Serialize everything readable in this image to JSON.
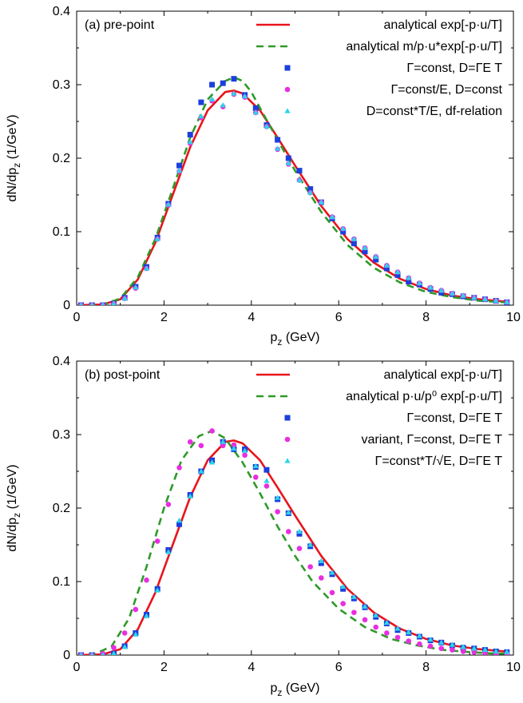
{
  "chart_data": [
    {
      "type": "line",
      "panel_label": "(a) pre-point",
      "xlabel": "p",
      "xlabel_sub": "z",
      "xlabel_unit": " (GeV)",
      "ylabel": "dN/dp",
      "ylabel_sub": "z",
      "ylabel_unit": " (1/GeV)",
      "xlim": [
        0,
        10
      ],
      "ylim": [
        0,
        0.4
      ],
      "xticks": [
        "0",
        "2",
        "4",
        "6",
        "8",
        "10"
      ],
      "yticks": [
        "0",
        "0.1",
        "0.2",
        "0.3",
        "0.4"
      ],
      "legend_position": "top-right",
      "series": [
        {
          "name": "analytical exp[-p·u/T]",
          "kind": "line",
          "color": "#e8141c",
          "dash": "",
          "x": [
            0,
            0.6,
            1.0,
            1.4,
            1.8,
            2.2,
            2.6,
            3.0,
            3.4,
            3.6,
            3.8,
            4.2,
            4.6,
            5.0,
            5.6,
            6.2,
            6.8,
            7.4,
            8.0,
            8.6,
            9.2,
            9.8
          ],
          "y": [
            0,
            0.001,
            0.008,
            0.035,
            0.085,
            0.15,
            0.215,
            0.265,
            0.29,
            0.292,
            0.288,
            0.265,
            0.228,
            0.19,
            0.135,
            0.09,
            0.058,
            0.036,
            0.022,
            0.013,
            0.008,
            0.005
          ]
        },
        {
          "name": "analytical m/p·u*exp[-p·u/T]",
          "kind": "line",
          "color": "#2e9a28",
          "dash": "9,6",
          "x": [
            0,
            0.6,
            1.0,
            1.4,
            1.8,
            2.2,
            2.6,
            3.0,
            3.4,
            3.6,
            3.8,
            4.0,
            4.2,
            4.6,
            5.0,
            5.6,
            6.2,
            6.8,
            7.4,
            8.0,
            8.6,
            9.2,
            9.8
          ],
          "y": [
            0,
            0.001,
            0.009,
            0.038,
            0.09,
            0.158,
            0.228,
            0.28,
            0.305,
            0.31,
            0.305,
            0.29,
            0.268,
            0.225,
            0.183,
            0.127,
            0.082,
            0.051,
            0.031,
            0.018,
            0.011,
            0.006,
            0.004
          ]
        },
        {
          "name": "Γ=const, D=ΓE T",
          "kind": "square",
          "color": "#1c3fdc",
          "x": [
            0.1,
            0.35,
            0.6,
            0.85,
            1.1,
            1.35,
            1.6,
            1.85,
            2.1,
            2.35,
            2.6,
            2.85,
            3.1,
            3.35,
            3.6,
            3.85,
            4.1,
            4.35,
            4.6,
            4.85,
            5.1,
            5.35,
            5.6,
            5.85,
            6.1,
            6.35,
            6.6,
            6.85,
            7.1,
            7.35,
            7.6,
            7.85,
            8.1,
            8.35,
            8.6,
            8.85,
            9.1,
            9.35,
            9.6,
            9.85
          ],
          "y": [
            0,
            0,
            0,
            0.002,
            0.01,
            0.025,
            0.052,
            0.092,
            0.138,
            0.19,
            0.232,
            0.276,
            0.3,
            0.302,
            0.308,
            0.286,
            0.268,
            0.245,
            0.225,
            0.2,
            0.183,
            0.158,
            0.14,
            0.118,
            0.1,
            0.084,
            0.073,
            0.062,
            0.05,
            0.041,
            0.032,
            0.028,
            0.022,
            0.017,
            0.015,
            0.012,
            0.01,
            0.008,
            0.006,
            0.004
          ]
        },
        {
          "name": "Γ=const/E, D=const",
          "kind": "circle",
          "color": "#e82ee0",
          "x": [
            0.1,
            0.35,
            0.6,
            0.85,
            1.1,
            1.35,
            1.6,
            1.85,
            2.1,
            2.35,
            2.6,
            2.85,
            3.1,
            3.35,
            3.6,
            3.85,
            4.1,
            4.35,
            4.6,
            4.85,
            5.1,
            5.35,
            5.6,
            5.85,
            6.1,
            6.35,
            6.6,
            6.85,
            7.1,
            7.35,
            7.6,
            7.85,
            8.1,
            8.35,
            8.6,
            8.85,
            9.1,
            9.35,
            9.6,
            9.85
          ],
          "y": [
            0,
            0,
            0,
            0.002,
            0.009,
            0.023,
            0.05,
            0.09,
            0.136,
            0.182,
            0.22,
            0.255,
            0.278,
            0.27,
            0.287,
            0.283,
            0.262,
            0.243,
            0.212,
            0.192,
            0.17,
            0.153,
            0.14,
            0.12,
            0.104,
            0.09,
            0.078,
            0.066,
            0.054,
            0.045,
            0.037,
            0.03,
            0.024,
            0.02,
            0.016,
            0.013,
            0.01,
            0.008,
            0.006,
            0.004
          ]
        },
        {
          "name": "D=const*T/E, df-relation",
          "kind": "triangle",
          "color": "#2ed4e8",
          "x": [
            0.1,
            0.35,
            0.6,
            0.85,
            1.1,
            1.35,
            1.6,
            1.85,
            2.1,
            2.35,
            2.6,
            2.85,
            3.1,
            3.35,
            3.6,
            3.85,
            4.1,
            4.35,
            4.6,
            4.85,
            5.1,
            5.35,
            5.6,
            5.85,
            6.1,
            6.35,
            6.6,
            6.85,
            7.1,
            7.35,
            7.6,
            7.85,
            8.1,
            8.35,
            8.6,
            8.85,
            9.1,
            9.35,
            9.6,
            9.85
          ],
          "y": [
            0,
            0,
            0,
            0.002,
            0.009,
            0.024,
            0.05,
            0.09,
            0.137,
            0.183,
            0.222,
            0.257,
            0.28,
            0.272,
            0.288,
            0.284,
            0.262,
            0.243,
            0.213,
            0.193,
            0.17,
            0.153,
            0.14,
            0.12,
            0.104,
            0.09,
            0.078,
            0.066,
            0.054,
            0.045,
            0.037,
            0.03,
            0.024,
            0.02,
            0.016,
            0.013,
            0.01,
            0.008,
            0.006,
            0.004
          ]
        }
      ]
    },
    {
      "type": "line",
      "panel_label": "(b) post-point",
      "xlabel": "p",
      "xlabel_sub": "z",
      "xlabel_unit": " (GeV)",
      "ylabel": "dN/dp",
      "ylabel_sub": "z",
      "ylabel_unit": " (1/GeV)",
      "xlim": [
        0,
        10
      ],
      "ylim": [
        0,
        0.4
      ],
      "xticks": [
        "0",
        "2",
        "4",
        "6",
        "8",
        "10"
      ],
      "yticks": [
        "0",
        "0.1",
        "0.2",
        "0.3",
        "0.4"
      ],
      "legend_position": "top-right",
      "series": [
        {
          "name": "analytical exp[-p·u/T]",
          "kind": "line",
          "color": "#e8141c",
          "dash": "",
          "x": [
            0,
            0.6,
            1.0,
            1.4,
            1.8,
            2.2,
            2.6,
            3.0,
            3.4,
            3.6,
            3.8,
            4.2,
            4.6,
            5.0,
            5.6,
            6.2,
            6.8,
            7.4,
            8.0,
            8.6,
            9.2,
            9.8
          ],
          "y": [
            0,
            0.001,
            0.008,
            0.035,
            0.085,
            0.15,
            0.215,
            0.265,
            0.29,
            0.292,
            0.288,
            0.265,
            0.228,
            0.19,
            0.135,
            0.09,
            0.058,
            0.036,
            0.022,
            0.013,
            0.008,
            0.005
          ]
        },
        {
          "name": "analytical p·u/p⁰ exp[-p·u/T]",
          "kind": "line",
          "color": "#2e9a28",
          "dash": "9,6",
          "x": [
            0,
            0.4,
            0.8,
            1.2,
            1.6,
            2.0,
            2.4,
            2.8,
            3.1,
            3.4,
            3.8,
            4.2,
            4.6,
            5.0,
            5.4,
            6.0,
            6.6,
            7.2,
            7.8,
            8.4,
            9.0,
            9.6,
            9.8
          ],
          "y": [
            0,
            0.001,
            0.012,
            0.05,
            0.12,
            0.2,
            0.265,
            0.298,
            0.305,
            0.295,
            0.262,
            0.22,
            0.175,
            0.135,
            0.1,
            0.063,
            0.038,
            0.022,
            0.013,
            0.007,
            0.004,
            0.002,
            0.002
          ]
        },
        {
          "name": "Γ=const, D=ΓE T",
          "kind": "square",
          "color": "#1c3fdc",
          "x": [
            0.1,
            0.35,
            0.6,
            0.85,
            1.1,
            1.35,
            1.6,
            1.85,
            2.1,
            2.35,
            2.6,
            2.85,
            3.1,
            3.35,
            3.6,
            3.85,
            4.1,
            4.35,
            4.6,
            4.85,
            5.1,
            5.35,
            5.6,
            5.85,
            6.1,
            6.35,
            6.6,
            6.85,
            7.1,
            7.35,
            7.6,
            7.85,
            8.1,
            8.35,
            8.6,
            8.85,
            9.1,
            9.35,
            9.6,
            9.85
          ],
          "y": [
            0,
            0,
            0,
            0.002,
            0.012,
            0.03,
            0.055,
            0.09,
            0.143,
            0.178,
            0.218,
            0.25,
            0.265,
            0.29,
            0.28,
            0.28,
            0.256,
            0.252,
            0.212,
            0.193,
            0.165,
            0.148,
            0.125,
            0.11,
            0.09,
            0.077,
            0.065,
            0.052,
            0.043,
            0.034,
            0.03,
            0.025,
            0.02,
            0.017,
            0.013,
            0.01,
            0.009,
            0.007,
            0.005,
            0.004
          ]
        },
        {
          "name": "variant, Γ=const, D=ΓE T",
          "kind": "circle",
          "color": "#e82ee0",
          "x": [
            0.1,
            0.35,
            0.6,
            0.85,
            1.1,
            1.35,
            1.6,
            1.85,
            2.1,
            2.35,
            2.6,
            2.85,
            3.1,
            3.35,
            3.6,
            3.85,
            4.1,
            4.35,
            4.6,
            4.85,
            5.1,
            5.35,
            5.6,
            5.85,
            6.1,
            6.35,
            6.6,
            6.85,
            7.1,
            7.35,
            7.6,
            7.85,
            8.1,
            8.35,
            8.6,
            8.85,
            9.1,
            9.35,
            9.6,
            9.85
          ],
          "y": [
            0,
            0,
            0.002,
            0.01,
            0.03,
            0.062,
            0.102,
            0.155,
            0.205,
            0.255,
            0.29,
            0.285,
            0.305,
            0.285,
            0.286,
            0.272,
            0.242,
            0.23,
            0.195,
            0.168,
            0.145,
            0.12,
            0.105,
            0.085,
            0.07,
            0.058,
            0.048,
            0.038,
            0.03,
            0.024,
            0.019,
            0.015,
            0.012,
            0.009,
            0.007,
            0.005,
            0.004,
            0.003,
            0.002,
            0.002
          ]
        },
        {
          "name": "Γ=const*T/√E, D=ΓE T",
          "kind": "triangle",
          "color": "#2ed4e8",
          "x": [
            0.1,
            0.35,
            0.6,
            0.85,
            1.1,
            1.35,
            1.6,
            1.85,
            2.1,
            2.35,
            2.6,
            2.85,
            3.1,
            3.35,
            3.6,
            3.85,
            4.1,
            4.35,
            4.6,
            4.85,
            5.1,
            5.35,
            5.6,
            5.85,
            6.1,
            6.35,
            6.6,
            6.85,
            7.1,
            7.35,
            7.6,
            7.85,
            8.1,
            8.35,
            8.6,
            8.85,
            9.1,
            9.35,
            9.6,
            9.85
          ],
          "y": [
            0,
            0,
            0,
            0.002,
            0.011,
            0.028,
            0.053,
            0.088,
            0.14,
            0.183,
            0.216,
            0.25,
            0.262,
            0.29,
            0.281,
            0.278,
            0.257,
            0.237,
            0.214,
            0.194,
            0.168,
            0.15,
            0.128,
            0.112,
            0.093,
            0.079,
            0.066,
            0.054,
            0.044,
            0.036,
            0.031,
            0.026,
            0.021,
            0.017,
            0.014,
            0.011,
            0.009,
            0.007,
            0.005,
            0.004
          ]
        }
      ]
    }
  ]
}
